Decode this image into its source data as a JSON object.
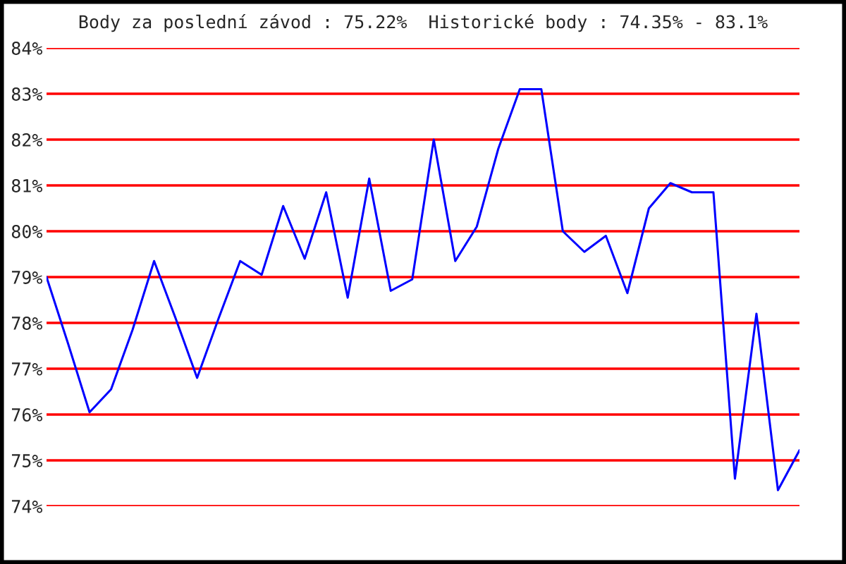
{
  "chart_data": {
    "type": "line",
    "title": "Body za poslední závod : 75.22%  Historické body : 74.35% - 83.1%",
    "categories": [
      null,
      null,
      null,
      null,
      null,
      null,
      null,
      null,
      null,
      null,
      null,
      null,
      null,
      null,
      null,
      null,
      null,
      null,
      null,
      null,
      null,
      null,
      null,
      null,
      null,
      null,
      null,
      null,
      null,
      null,
      null,
      null,
      null,
      null,
      null,
      null
    ],
    "series": [
      {
        "color": "#0000ff",
        "values": [
          79.0,
          77.55,
          76.05,
          76.55,
          77.85,
          79.35,
          78.1,
          76.8,
          78.1,
          79.35,
          79.05,
          80.55,
          79.4,
          80.85,
          78.55,
          81.15,
          78.7,
          78.95,
          82.0,
          79.35,
          80.1,
          81.8,
          83.1,
          83.1,
          80.0,
          79.55,
          79.9,
          78.65,
          80.5,
          81.05,
          80.85,
          80.85,
          74.6,
          78.2,
          74.35,
          75.22
        ]
      }
    ],
    "ylim": [
      74,
      84
    ],
    "yticks": [
      {
        "value": 74,
        "label": "74%"
      },
      {
        "value": 75,
        "label": "75%"
      },
      {
        "value": 76,
        "label": "76%"
      },
      {
        "value": 77,
        "label": "77%"
      },
      {
        "value": 78,
        "label": "78%"
      },
      {
        "value": 79,
        "label": "79%"
      },
      {
        "value": 80,
        "label": "80%"
      },
      {
        "value": 81,
        "label": "81%"
      },
      {
        "value": 82,
        "label": "82%"
      },
      {
        "value": 83,
        "label": "83%"
      },
      {
        "value": 84,
        "label": "84%"
      }
    ],
    "grid": "y",
    "tick_labels": "y",
    "marker": "none",
    "line_style": "solid",
    "legend": false
  }
}
